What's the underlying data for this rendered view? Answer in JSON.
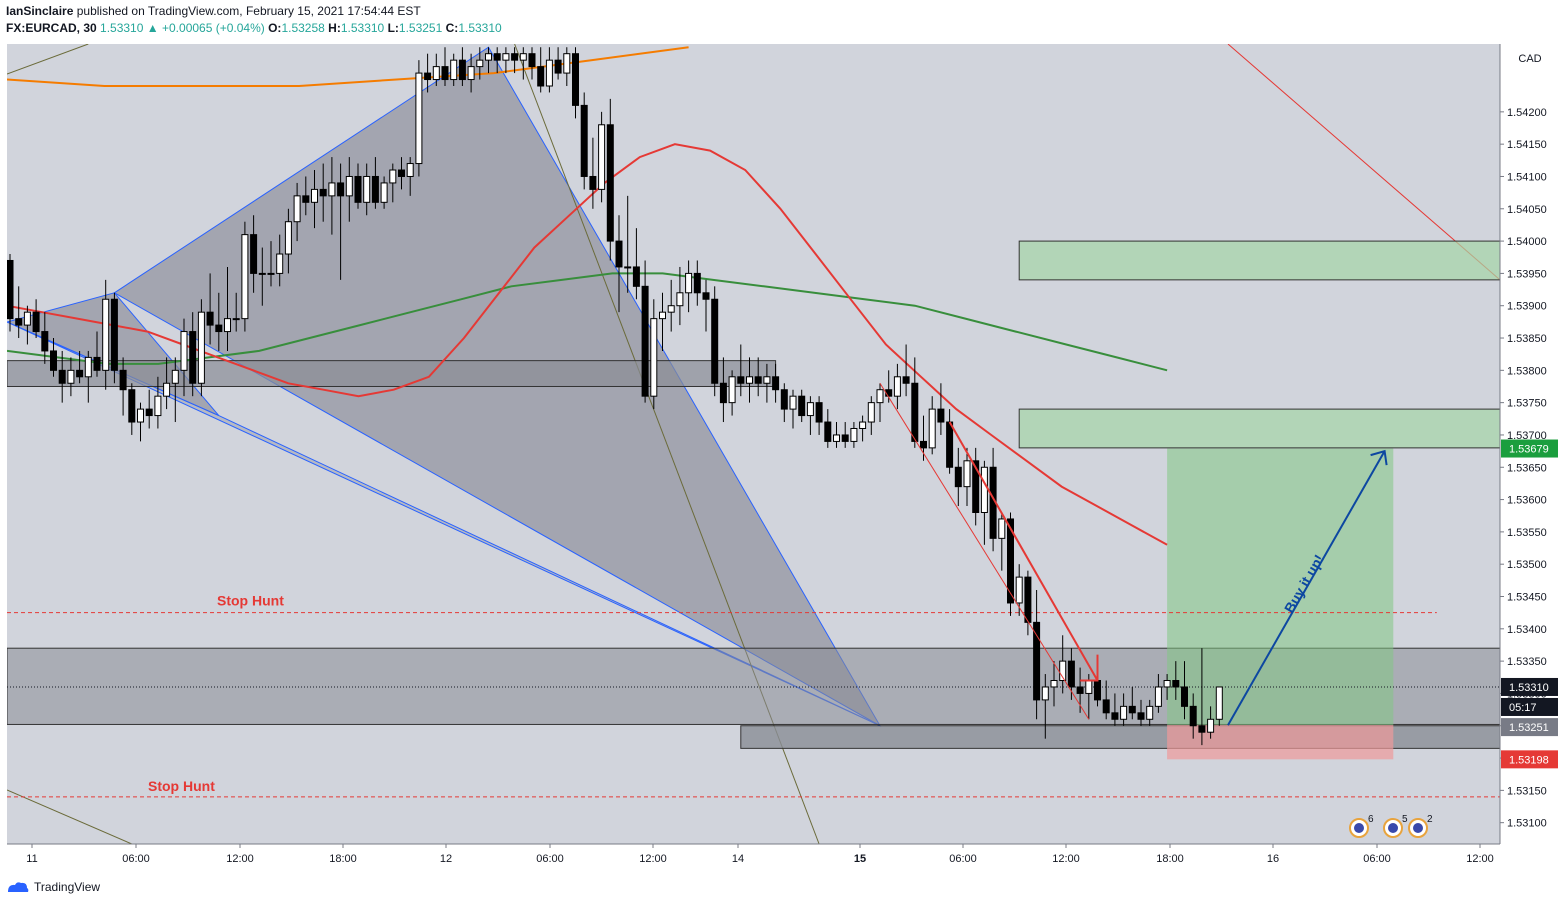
{
  "header": {
    "author": "IanSinclaire",
    "published_text": "published on TradingView.com, February 15, 2021 17:54:44 EST",
    "symbol": "FX:EURCAD, 30",
    "last": "1.53310",
    "change": "+0.00065 (+0.04%)",
    "open_label": "O:",
    "open": "1.53258",
    "high_label": "H:",
    "high": "1.53310",
    "low_label": "L:",
    "low": "1.53251",
    "close_label": "C:",
    "close": "1.53310"
  },
  "footer": {
    "brand": "TradingView"
  },
  "colors": {
    "plot_bg": "#d1d4dc",
    "up_candle": "#ffffff",
    "down_candle": "#000000",
    "ema_red": "#e53935",
    "ema_green": "#388e3c",
    "ema_orange": "#f57c00",
    "zone_green": "#a5d6a7",
    "target_green": "#81c784",
    "stop_red": "#ef9a9a",
    "arrow_blue": "#0d47a1",
    "stop_hunt_red": "#e53935"
  },
  "chart_data": {
    "type": "candlestick",
    "symbol": "FX:EURCAD",
    "timeframe": "30",
    "currency_label": "CAD",
    "ylim": [
      1.5307,
      1.543
    ],
    "y_ticks": [
      "1.54200",
      "1.54150",
      "1.54100",
      "1.54050",
      "1.54000",
      "1.53950",
      "1.53900",
      "1.53850",
      "1.53800",
      "1.53750",
      "1.53700",
      "1.53650",
      "1.53600",
      "1.53550",
      "1.53500",
      "1.53450",
      "1.53400",
      "1.53350",
      "1.53300",
      "1.53250",
      "1.53200",
      "1.53150",
      "1.53100"
    ],
    "x_ticks": [
      "11",
      "06:00",
      "12:00",
      "18:00",
      "12",
      "06:00",
      "12:00",
      "14",
      "15",
      "06:00",
      "12:00",
      "18:00",
      "16",
      "06:00",
      "12:00"
    ],
    "price_labels": {
      "target": {
        "value": "1.53679",
        "color": "#1b9e3e"
      },
      "current": {
        "value": "1.53310",
        "color": "#131722"
      },
      "countdown": {
        "value": "05:17",
        "color": "#131722"
      },
      "entry": {
        "value": "1.53251",
        "color": "#787b86"
      },
      "stop": {
        "value": "1.53198",
        "color": "#e53935"
      }
    },
    "candles": [
      {
        "o": 1.5397,
        "h": 1.5398,
        "l": 1.5386,
        "c": 1.5388
      },
      {
        "o": 1.5388,
        "h": 1.5393,
        "l": 1.5385,
        "c": 1.5387
      },
      {
        "o": 1.5387,
        "h": 1.539,
        "l": 1.5384,
        "c": 1.5389
      },
      {
        "o": 1.5389,
        "h": 1.5391,
        "l": 1.5385,
        "c": 1.5386
      },
      {
        "o": 1.5386,
        "h": 1.5389,
        "l": 1.5381,
        "c": 1.5383
      },
      {
        "o": 1.5383,
        "h": 1.5385,
        "l": 1.5379,
        "c": 1.538
      },
      {
        "o": 1.538,
        "h": 1.5383,
        "l": 1.5375,
        "c": 1.5378
      },
      {
        "o": 1.5378,
        "h": 1.5382,
        "l": 1.5376,
        "c": 1.538
      },
      {
        "o": 1.538,
        "h": 1.5383,
        "l": 1.5378,
        "c": 1.5379
      },
      {
        "o": 1.5379,
        "h": 1.5383,
        "l": 1.5375,
        "c": 1.5382
      },
      {
        "o": 1.5382,
        "h": 1.5386,
        "l": 1.5379,
        "c": 1.538
      },
      {
        "o": 1.538,
        "h": 1.5394,
        "l": 1.5377,
        "c": 1.5391
      },
      {
        "o": 1.5391,
        "h": 1.5392,
        "l": 1.5378,
        "c": 1.538
      },
      {
        "o": 1.538,
        "h": 1.5382,
        "l": 1.5373,
        "c": 1.5377
      },
      {
        "o": 1.5377,
        "h": 1.5378,
        "l": 1.537,
        "c": 1.5372
      },
      {
        "o": 1.5372,
        "h": 1.5375,
        "l": 1.5369,
        "c": 1.5374
      },
      {
        "o": 1.5374,
        "h": 1.5377,
        "l": 1.5371,
        "c": 1.5373
      },
      {
        "o": 1.5373,
        "h": 1.5379,
        "l": 1.5371,
        "c": 1.5376
      },
      {
        "o": 1.5376,
        "h": 1.5382,
        "l": 1.5374,
        "c": 1.5378
      },
      {
        "o": 1.5378,
        "h": 1.5382,
        "l": 1.5372,
        "c": 1.538
      },
      {
        "o": 1.538,
        "h": 1.5388,
        "l": 1.5376,
        "c": 1.5386
      },
      {
        "o": 1.5386,
        "h": 1.5389,
        "l": 1.5376,
        "c": 1.5378
      },
      {
        "o": 1.5378,
        "h": 1.5391,
        "l": 1.5376,
        "c": 1.5389
      },
      {
        "o": 1.5389,
        "h": 1.5395,
        "l": 1.5384,
        "c": 1.5387
      },
      {
        "o": 1.5387,
        "h": 1.5392,
        "l": 1.5383,
        "c": 1.5386
      },
      {
        "o": 1.5386,
        "h": 1.5396,
        "l": 1.5383,
        "c": 1.5388
      },
      {
        "o": 1.5388,
        "h": 1.5392,
        "l": 1.5386,
        "c": 1.5388
      },
      {
        "o": 1.5388,
        "h": 1.5403,
        "l": 1.5386,
        "c": 1.5401
      },
      {
        "o": 1.5401,
        "h": 1.5404,
        "l": 1.5392,
        "c": 1.5395
      },
      {
        "o": 1.5395,
        "h": 1.5399,
        "l": 1.539,
        "c": 1.5395
      },
      {
        "o": 1.5395,
        "h": 1.54,
        "l": 1.5393,
        "c": 1.5395
      },
      {
        "o": 1.5395,
        "h": 1.5401,
        "l": 1.5393,
        "c": 1.5398
      },
      {
        "o": 1.5398,
        "h": 1.5405,
        "l": 1.5395,
        "c": 1.5403
      },
      {
        "o": 1.5403,
        "h": 1.5409,
        "l": 1.54,
        "c": 1.5407
      },
      {
        "o": 1.5407,
        "h": 1.541,
        "l": 1.5404,
        "c": 1.5406
      },
      {
        "o": 1.5406,
        "h": 1.5411,
        "l": 1.5402,
        "c": 1.5408
      },
      {
        "o": 1.5408,
        "h": 1.5412,
        "l": 1.5403,
        "c": 1.5407
      },
      {
        "o": 1.5407,
        "h": 1.5413,
        "l": 1.5401,
        "c": 1.5409
      },
      {
        "o": 1.5409,
        "h": 1.5412,
        "l": 1.5394,
        "c": 1.5407
      },
      {
        "o": 1.5407,
        "h": 1.5413,
        "l": 1.5403,
        "c": 1.541
      },
      {
        "o": 1.541,
        "h": 1.5412,
        "l": 1.5405,
        "c": 1.5406
      },
      {
        "o": 1.5406,
        "h": 1.5412,
        "l": 1.5404,
        "c": 1.541
      },
      {
        "o": 1.541,
        "h": 1.5413,
        "l": 1.5405,
        "c": 1.5406
      },
      {
        "o": 1.5406,
        "h": 1.541,
        "l": 1.5405,
        "c": 1.5409
      },
      {
        "o": 1.5409,
        "h": 1.5412,
        "l": 1.5406,
        "c": 1.5411
      },
      {
        "o": 1.5411,
        "h": 1.5413,
        "l": 1.5408,
        "c": 1.541
      },
      {
        "o": 1.541,
        "h": 1.5413,
        "l": 1.5407,
        "c": 1.5412
      },
      {
        "o": 1.5412,
        "h": 1.5428,
        "l": 1.541,
        "c": 1.5426
      },
      {
        "o": 1.5426,
        "h": 1.5429,
        "l": 1.5423,
        "c": 1.5425
      },
      {
        "o": 1.5425,
        "h": 1.5429,
        "l": 1.5424,
        "c": 1.5427
      },
      {
        "o": 1.5427,
        "h": 1.543,
        "l": 1.5424,
        "c": 1.5425
      },
      {
        "o": 1.5425,
        "h": 1.5429,
        "l": 1.5424,
        "c": 1.5428
      },
      {
        "o": 1.5428,
        "h": 1.543,
        "l": 1.5424,
        "c": 1.5425
      },
      {
        "o": 1.5425,
        "h": 1.5429,
        "l": 1.5423,
        "c": 1.5427
      },
      {
        "o": 1.5427,
        "h": 1.543,
        "l": 1.5425,
        "c": 1.5428
      },
      {
        "o": 1.5428,
        "h": 1.543,
        "l": 1.5426,
        "c": 1.5429
      },
      {
        "o": 1.5429,
        "h": 1.543,
        "l": 1.5426,
        "c": 1.5428
      },
      {
        "o": 1.5428,
        "h": 1.543,
        "l": 1.5426,
        "c": 1.5429
      },
      {
        "o": 1.5429,
        "h": 1.543,
        "l": 1.5426,
        "c": 1.5428
      },
      {
        "o": 1.5428,
        "h": 1.543,
        "l": 1.5425,
        "c": 1.5429
      },
      {
        "o": 1.5429,
        "h": 1.543,
        "l": 1.5425,
        "c": 1.5427
      },
      {
        "o": 1.5427,
        "h": 1.543,
        "l": 1.5423,
        "c": 1.5424
      },
      {
        "o": 1.5424,
        "h": 1.543,
        "l": 1.5423,
        "c": 1.5428
      },
      {
        "o": 1.5428,
        "h": 1.543,
        "l": 1.5425,
        "c": 1.5426
      },
      {
        "o": 1.5426,
        "h": 1.543,
        "l": 1.5424,
        "c": 1.5429
      },
      {
        "o": 1.5429,
        "h": 1.543,
        "l": 1.5419,
        "c": 1.5421
      },
      {
        "o": 1.5421,
        "h": 1.5423,
        "l": 1.5408,
        "c": 1.541
      },
      {
        "o": 1.541,
        "h": 1.5416,
        "l": 1.5405,
        "c": 1.5408
      },
      {
        "o": 1.5408,
        "h": 1.542,
        "l": 1.5406,
        "c": 1.5418
      },
      {
        "o": 1.5418,
        "h": 1.5422,
        "l": 1.5397,
        "c": 1.54
      },
      {
        "o": 1.54,
        "h": 1.5404,
        "l": 1.5389,
        "c": 1.5396
      },
      {
        "o": 1.5396,
        "h": 1.5407,
        "l": 1.5392,
        "c": 1.5396
      },
      {
        "o": 1.5396,
        "h": 1.5402,
        "l": 1.5391,
        "c": 1.5393
      },
      {
        "o": 1.5393,
        "h": 1.5397,
        "l": 1.5375,
        "c": 1.5376
      },
      {
        "o": 1.5376,
        "h": 1.5391,
        "l": 1.5374,
        "c": 1.5388
      },
      {
        "o": 1.5388,
        "h": 1.5392,
        "l": 1.5383,
        "c": 1.5389
      },
      {
        "o": 1.5389,
        "h": 1.5394,
        "l": 1.5386,
        "c": 1.539
      },
      {
        "o": 1.539,
        "h": 1.5396,
        "l": 1.5387,
        "c": 1.5392
      },
      {
        "o": 1.5392,
        "h": 1.5397,
        "l": 1.5389,
        "c": 1.5395
      },
      {
        "o": 1.5395,
        "h": 1.5397,
        "l": 1.539,
        "c": 1.5392
      },
      {
        "o": 1.5392,
        "h": 1.5394,
        "l": 1.5386,
        "c": 1.5391
      },
      {
        "o": 1.5391,
        "h": 1.5393,
        "l": 1.5376,
        "c": 1.5378
      },
      {
        "o": 1.5378,
        "h": 1.5382,
        "l": 1.5372,
        "c": 1.5375
      },
      {
        "o": 1.5375,
        "h": 1.538,
        "l": 1.5373,
        "c": 1.5379
      },
      {
        "o": 1.5379,
        "h": 1.5384,
        "l": 1.5376,
        "c": 1.5378
      },
      {
        "o": 1.5378,
        "h": 1.5382,
        "l": 1.5375,
        "c": 1.5379
      },
      {
        "o": 1.5379,
        "h": 1.5382,
        "l": 1.5376,
        "c": 1.5378
      },
      {
        "o": 1.5378,
        "h": 1.5381,
        "l": 1.5375,
        "c": 1.5379
      },
      {
        "o": 1.5379,
        "h": 1.5381,
        "l": 1.5375,
        "c": 1.5377
      },
      {
        "o": 1.5377,
        "h": 1.5378,
        "l": 1.5372,
        "c": 1.5374
      },
      {
        "o": 1.5374,
        "h": 1.5377,
        "l": 1.5371,
        "c": 1.5376
      },
      {
        "o": 1.5376,
        "h": 1.5377,
        "l": 1.5372,
        "c": 1.5373
      },
      {
        "o": 1.5373,
        "h": 1.5376,
        "l": 1.537,
        "c": 1.5375
      },
      {
        "o": 1.5375,
        "h": 1.5376,
        "l": 1.537,
        "c": 1.5372
      },
      {
        "o": 1.5372,
        "h": 1.5374,
        "l": 1.5368,
        "c": 1.5369
      },
      {
        "o": 1.5369,
        "h": 1.5372,
        "l": 1.5368,
        "c": 1.537
      },
      {
        "o": 1.537,
        "h": 1.5372,
        "l": 1.5368,
        "c": 1.5369
      },
      {
        "o": 1.5369,
        "h": 1.5372,
        "l": 1.5368,
        "c": 1.5371
      },
      {
        "o": 1.5371,
        "h": 1.5373,
        "l": 1.5369,
        "c": 1.5372
      },
      {
        "o": 1.5372,
        "h": 1.5376,
        "l": 1.537,
        "c": 1.5375
      },
      {
        "o": 1.5375,
        "h": 1.5378,
        "l": 1.5372,
        "c": 1.5377
      },
      {
        "o": 1.5377,
        "h": 1.538,
        "l": 1.5375,
        "c": 1.5376
      },
      {
        "o": 1.5376,
        "h": 1.5381,
        "l": 1.5374,
        "c": 1.5379
      },
      {
        "o": 1.5379,
        "h": 1.5384,
        "l": 1.5376,
        "c": 1.5378
      },
      {
        "o": 1.5378,
        "h": 1.5382,
        "l": 1.5368,
        "c": 1.5369
      },
      {
        "o": 1.5369,
        "h": 1.5373,
        "l": 1.5366,
        "c": 1.5368
      },
      {
        "o": 1.5368,
        "h": 1.5376,
        "l": 1.5367,
        "c": 1.5374
      },
      {
        "o": 1.5374,
        "h": 1.5378,
        "l": 1.537,
        "c": 1.5372
      },
      {
        "o": 1.5372,
        "h": 1.5374,
        "l": 1.5364,
        "c": 1.5365
      },
      {
        "o": 1.5365,
        "h": 1.5368,
        "l": 1.5359,
        "c": 1.5362
      },
      {
        "o": 1.5362,
        "h": 1.5368,
        "l": 1.5359,
        "c": 1.5366
      },
      {
        "o": 1.5366,
        "h": 1.5368,
        "l": 1.5356,
        "c": 1.5358
      },
      {
        "o": 1.5358,
        "h": 1.5366,
        "l": 1.5353,
        "c": 1.5365
      },
      {
        "o": 1.5365,
        "h": 1.5368,
        "l": 1.5352,
        "c": 1.5354
      },
      {
        "o": 1.5354,
        "h": 1.5358,
        "l": 1.5349,
        "c": 1.5357
      },
      {
        "o": 1.5357,
        "h": 1.5358,
        "l": 1.5342,
        "c": 1.5344
      },
      {
        "o": 1.5344,
        "h": 1.535,
        "l": 1.5342,
        "c": 1.5348
      },
      {
        "o": 1.5348,
        "h": 1.5349,
        "l": 1.5339,
        "c": 1.5341
      },
      {
        "o": 1.5341,
        "h": 1.5346,
        "l": 1.5326,
        "c": 1.5329
      },
      {
        "o": 1.5329,
        "h": 1.5333,
        "l": 1.5323,
        "c": 1.5331
      },
      {
        "o": 1.5331,
        "h": 1.5335,
        "l": 1.5328,
        "c": 1.5332
      },
      {
        "o": 1.5332,
        "h": 1.5339,
        "l": 1.533,
        "c": 1.5335
      },
      {
        "o": 1.5335,
        "h": 1.5337,
        "l": 1.5329,
        "c": 1.5331
      },
      {
        "o": 1.5331,
        "h": 1.5334,
        "l": 1.5327,
        "c": 1.533
      },
      {
        "o": 1.533,
        "h": 1.5333,
        "l": 1.5326,
        "c": 1.5332
      },
      {
        "o": 1.5332,
        "h": 1.5334,
        "l": 1.5328,
        "c": 1.5329
      },
      {
        "o": 1.5329,
        "h": 1.5332,
        "l": 1.5326,
        "c": 1.5327
      },
      {
        "o": 1.5327,
        "h": 1.533,
        "l": 1.5325,
        "c": 1.5326
      },
      {
        "o": 1.5326,
        "h": 1.533,
        "l": 1.5325,
        "c": 1.5328
      },
      {
        "o": 1.5328,
        "h": 1.5331,
        "l": 1.5326,
        "c": 1.5327
      },
      {
        "o": 1.5327,
        "h": 1.5329,
        "l": 1.5325,
        "c": 1.5326
      },
      {
        "o": 1.5326,
        "h": 1.5329,
        "l": 1.5325,
        "c": 1.5328
      },
      {
        "o": 1.5328,
        "h": 1.5333,
        "l": 1.5327,
        "c": 1.5331
      },
      {
        "o": 1.5331,
        "h": 1.5333,
        "l": 1.5329,
        "c": 1.5332
      },
      {
        "o": 1.5332,
        "h": 1.5335,
        "l": 1.5329,
        "c": 1.5331
      },
      {
        "o": 1.5331,
        "h": 1.5335,
        "l": 1.5326,
        "c": 1.5328
      },
      {
        "o": 1.5328,
        "h": 1.533,
        "l": 1.5323,
        "c": 1.5325
      },
      {
        "o": 1.5325,
        "h": 1.5337,
        "l": 1.5322,
        "c": 1.5324
      },
      {
        "o": 1.5324,
        "h": 1.5328,
        "l": 1.5323,
        "c": 1.5326
      },
      {
        "o": 1.5326,
        "h": 1.5331,
        "l": 1.5325,
        "c": 1.5331
      }
    ],
    "ema_red": [
      1.539,
      1.5389,
      1.5388,
      1.5387,
      1.5386,
      1.5384,
      1.5382,
      1.538,
      1.5378,
      1.5377,
      1.5376,
      1.5377,
      1.5379,
      1.5385,
      1.5392,
      1.5399,
      1.5404,
      1.5409,
      1.5413,
      1.5415,
      1.5414,
      1.5411,
      1.5405,
      1.5398,
      1.5391,
      1.5384,
      1.5379,
      1.5374,
      1.537,
      1.5366,
      1.5362,
      1.5359,
      1.5356,
      1.5353
    ],
    "ema_green": [
      1.5383,
      1.5382,
      1.5381,
      1.5381,
      1.5382,
      1.5383,
      1.5385,
      1.5387,
      1.5389,
      1.5391,
      1.5393,
      1.5394,
      1.5395,
      1.5395,
      1.5394,
      1.5393,
      1.5392,
      1.5391,
      1.539,
      1.5388,
      1.5386,
      1.5384,
      1.5382,
      1.538
    ],
    "ema_orange": [
      1.5425,
      1.5424,
      1.5424,
      1.5424,
      1.5425,
      1.5426,
      1.5428,
      1.543
    ],
    "zones": {
      "upper_green": [
        1.5394,
        1.54
      ],
      "mid_green": [
        1.5368,
        1.5374
      ],
      "grey_left": [
        1.53775,
        1.53815
      ],
      "grey_bottom": [
        1.53252,
        1.5337
      ],
      "grey_base": [
        1.53215,
        1.5325
      ]
    },
    "position": {
      "entry": 1.53251,
      "target": 1.53679,
      "stop": 1.53198
    },
    "stop_hunt_levels": [
      1.53425,
      1.5314
    ],
    "annotations": {
      "stop_hunt_upper": "Stop Hunt",
      "stop_hunt_lower": "Stop Hunt",
      "buy_text": "Buy it up!"
    },
    "events": [
      {
        "badge": "6"
      },
      {
        "badge": "5"
      },
      {
        "badge": "2"
      }
    ]
  }
}
